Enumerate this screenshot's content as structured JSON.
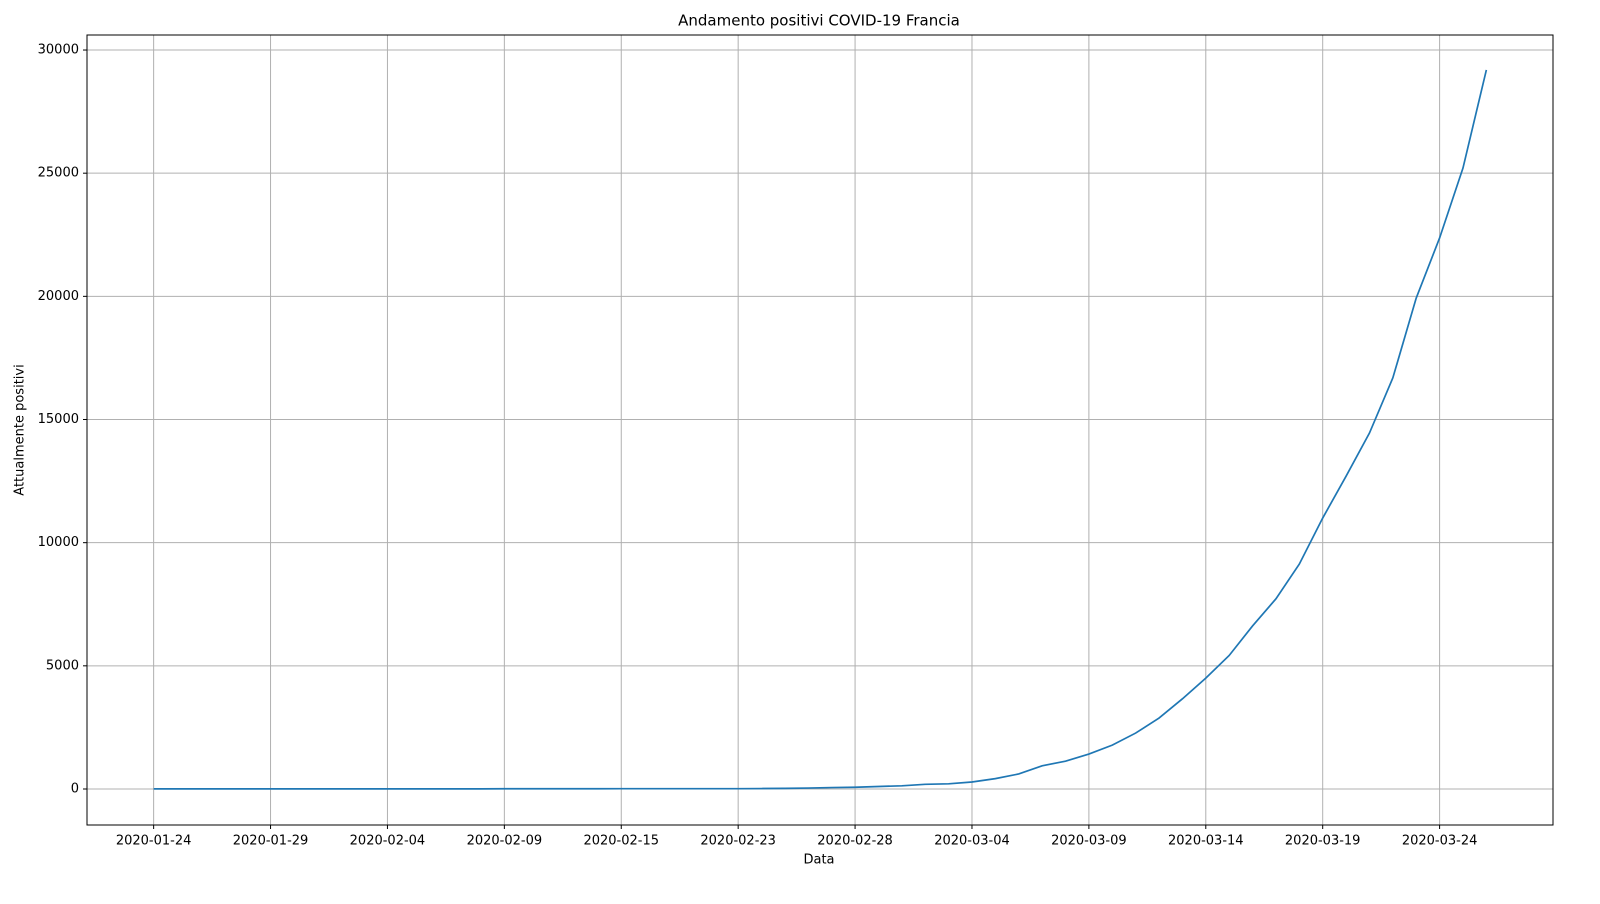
{
  "chart_data": {
    "type": "line",
    "title": "Andamento positivi COVID-19 Francia",
    "x_label": "Data",
    "y_label": "Attualmente positivi",
    "categories": [
      "2020-01-24",
      null,
      null,
      null,
      null,
      "2020-01-29",
      null,
      null,
      null,
      null,
      "2020-02-04",
      null,
      null,
      null,
      null,
      "2020-02-09",
      null,
      null,
      null,
      null,
      "2020-02-15",
      null,
      null,
      null,
      null,
      "2020-02-23",
      null,
      null,
      null,
      null,
      "2020-02-28",
      null,
      null,
      null,
      null,
      "2020-03-04",
      null,
      null,
      null,
      null,
      "2020-03-09",
      null,
      null,
      null,
      null,
      "2020-03-14",
      null,
      null,
      null,
      null,
      "2020-03-19",
      null,
      null,
      null,
      null,
      "2020-03-24",
      null,
      null
    ],
    "values": [
      3,
      3,
      3,
      3,
      3,
      4,
      5,
      5,
      5,
      6,
      6,
      6,
      6,
      6,
      6,
      11,
      11,
      11,
      11,
      11,
      12,
      12,
      12,
      12,
      12,
      12,
      18,
      25,
      38,
      57,
      70,
      100,
      130,
      190,
      210,
      285,
      420,
      610,
      940,
      1130,
      1420,
      1780,
      2270,
      2880,
      3660,
      4500,
      5420,
      6620,
      7720,
      9130,
      11000,
      12700,
      14450,
      16690,
      19930,
      22370,
      25210,
      29190
    ],
    "color": "#1f77b4",
    "ylim": [
      -1462,
      30610
    ],
    "yticks": [
      0,
      5000,
      10000,
      15000,
      20000,
      25000,
      30000
    ],
    "grid": true
  }
}
